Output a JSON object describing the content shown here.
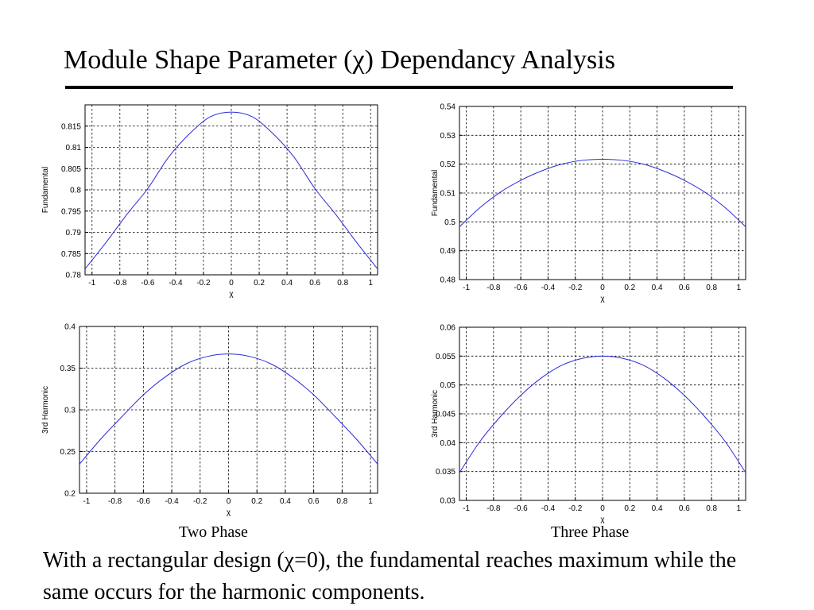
{
  "slide": {
    "title": "Module Shape Parameter (χ) Dependancy Analysis",
    "captions": [
      "Two Phase",
      "Three Phase"
    ],
    "body": "With a rectangular design (χ=0), the fundamental reaches maximum while the same occurs for the harmonic components."
  },
  "colors": {
    "series": "#2b2bd9",
    "grid": "#000000",
    "background": "#ffffff"
  },
  "chart_data": [
    {
      "type": "line",
      "xlabel": "χ",
      "ylabel": "Fundamental",
      "xlim": [
        -1.05,
        1.05
      ],
      "ylim": [
        0.78,
        0.82
      ],
      "xticks": [
        -1,
        -0.8,
        -0.6,
        -0.4,
        -0.2,
        0,
        0.2,
        0.4,
        0.6,
        0.8,
        1
      ],
      "xtick_labels": [
        "-1",
        "-0.8",
        "-0.6",
        "-0.4",
        "-0.2",
        "0",
        "0.2",
        "0.4",
        "0.6",
        "0.8",
        "1"
      ],
      "yticks": [
        0.78,
        0.785,
        0.79,
        0.795,
        0.8,
        0.805,
        0.81,
        0.815
      ],
      "ytick_labels": [
        "0.78",
        "0.785",
        "0.79",
        "0.795",
        "0.8",
        "0.805",
        "0.81",
        "0.815"
      ],
      "grid": true,
      "series": [
        {
          "x": [
            -1.05,
            -0.9,
            -0.75,
            -0.6,
            -0.45,
            -0.3,
            -0.15,
            0,
            0.15,
            0.3,
            0.45,
            0.6,
            0.75,
            0.9,
            1.05
          ],
          "values": [
            0.7814,
            0.7876,
            0.7942,
            0.8003,
            0.8077,
            0.8132,
            0.8172,
            0.8183,
            0.8172,
            0.8132,
            0.8077,
            0.8003,
            0.7942,
            0.7876,
            0.7814
          ]
        }
      ]
    },
    {
      "type": "line",
      "xlabel": "χ",
      "ylabel": "Fundamental",
      "xlim": [
        -1.05,
        1.05
      ],
      "ylim": [
        0.48,
        0.54
      ],
      "xticks": [
        -1,
        -0.8,
        -0.6,
        -0.4,
        -0.2,
        0,
        0.2,
        0.4,
        0.6,
        0.8,
        1
      ],
      "xtick_labels": [
        "-1",
        "-0.8",
        "-0.6",
        "-0.4",
        "-0.2",
        "0",
        "0.2",
        "0.4",
        "0.6",
        "0.8",
        "1"
      ],
      "yticks": [
        0.48,
        0.49,
        0.5,
        0.51,
        0.52,
        0.53,
        0.54
      ],
      "ytick_labels": [
        "0.48",
        "0.49",
        "0.5",
        "0.51",
        "0.52",
        "0.53",
        "0.54"
      ],
      "grid": true,
      "series": [
        {
          "x": [
            -1.05,
            -0.9,
            -0.75,
            -0.6,
            -0.45,
            -0.3,
            -0.15,
            0,
            0.15,
            0.3,
            0.45,
            0.6,
            0.75,
            0.9,
            1.05
          ],
          "values": [
            0.4983,
            0.5049,
            0.5103,
            0.5144,
            0.5176,
            0.52,
            0.5213,
            0.5217,
            0.5213,
            0.52,
            0.5176,
            0.5144,
            0.5103,
            0.5049,
            0.4983
          ]
        }
      ]
    },
    {
      "type": "line",
      "xlabel": "χ",
      "ylabel": "3rd Harmonic",
      "xlim": [
        -1.05,
        1.05
      ],
      "ylim": [
        0.2,
        0.4
      ],
      "xticks": [
        -1,
        -0.8,
        -0.6,
        -0.4,
        -0.2,
        0,
        0.2,
        0.4,
        0.6,
        0.8,
        1
      ],
      "xtick_labels": [
        "-1",
        "-0.8",
        "-0.6",
        "-0.4",
        "-0.2",
        "0",
        "0.2",
        "0.4",
        "0.6",
        "0.8",
        "1"
      ],
      "yticks": [
        0.2,
        0.25,
        0.3,
        0.35,
        0.4
      ],
      "ytick_labels": [
        "0.2",
        "0.25",
        "0.3",
        "0.35",
        "0.4"
      ],
      "grid": true,
      "series": [
        {
          "x": [
            -1.05,
            -0.9,
            -0.75,
            -0.6,
            -0.45,
            -0.3,
            -0.15,
            0,
            0.15,
            0.3,
            0.45,
            0.6,
            0.75,
            0.9,
            1.05
          ],
          "values": [
            0.235,
            0.265,
            0.292,
            0.318,
            0.339,
            0.355,
            0.364,
            0.367,
            0.364,
            0.355,
            0.339,
            0.318,
            0.292,
            0.265,
            0.235
          ]
        }
      ]
    },
    {
      "type": "line",
      "xlabel": "χ",
      "ylabel": "3rd Harmonic",
      "xlim": [
        -1.05,
        1.05
      ],
      "ylim": [
        0.03,
        0.06
      ],
      "xticks": [
        -1,
        -0.8,
        -0.6,
        -0.4,
        -0.2,
        0,
        0.2,
        0.4,
        0.6,
        0.8,
        1
      ],
      "xtick_labels": [
        "-1",
        "-0.8",
        "-0.6",
        "-0.4",
        "-0.2",
        "0",
        "0.2",
        "0.4",
        "0.6",
        "0.8",
        "1"
      ],
      "yticks": [
        0.03,
        0.035,
        0.04,
        0.045,
        0.05,
        0.055,
        0.06
      ],
      "ytick_labels": [
        "0.03",
        "0.035",
        "0.04",
        "0.045",
        "0.05",
        "0.055",
        "0.06"
      ],
      "grid": true,
      "series": [
        {
          "x": [
            -1.05,
            -0.9,
            -0.75,
            -0.6,
            -0.45,
            -0.3,
            -0.15,
            0,
            0.15,
            0.3,
            0.45,
            0.6,
            0.75,
            0.9,
            1.05
          ],
          "values": [
            0.0348,
            0.0402,
            0.0445,
            0.0482,
            0.0512,
            0.0534,
            0.0546,
            0.055,
            0.0546,
            0.0534,
            0.0512,
            0.0482,
            0.0445,
            0.0402,
            0.0348
          ]
        }
      ]
    }
  ]
}
